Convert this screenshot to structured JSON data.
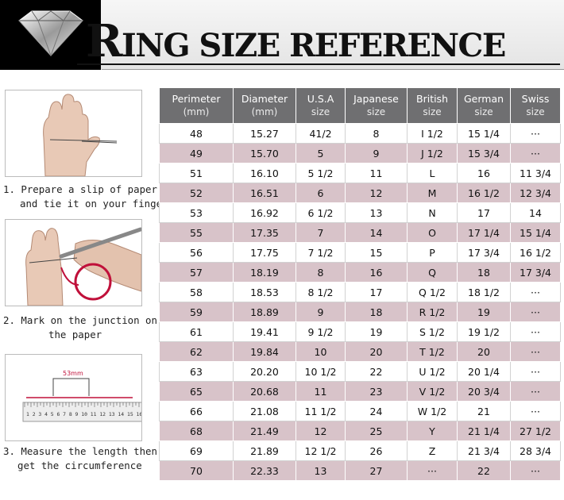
{
  "header": {
    "title_first": "R",
    "title_rest": "ING SIZE REFERENCE"
  },
  "steps": [
    {
      "line1": "1. Prepare a slip of paper",
      "line2": "and tie it on your finger"
    },
    {
      "line1": "2. Mark on the junction on",
      "line2": "the paper"
    },
    {
      "line1": "3. Measure the length then",
      "line2": "get the circumference",
      "ruler_label": "53mm",
      "ruler_numbers": "1 2 3 4 5 6 7 8 9 10 11 12 13 14 15 16"
    }
  ],
  "table": {
    "columns": [
      {
        "name": "Perimeter",
        "unit": "(mm)"
      },
      {
        "name": "Diameter",
        "unit": "(mm)"
      },
      {
        "name": "U.S.A",
        "unit": "size"
      },
      {
        "name": "Japanese",
        "unit": "size"
      },
      {
        "name": "British",
        "unit": "size"
      },
      {
        "name": "German",
        "unit": "size"
      },
      {
        "name": "Swiss",
        "unit": "size"
      }
    ],
    "rows": [
      [
        "48",
        "15.27",
        "41/2",
        "8",
        "I 1/2",
        "15 1/4",
        "···"
      ],
      [
        "49",
        "15.70",
        "5",
        "9",
        "J 1/2",
        "15 3/4",
        "···"
      ],
      [
        "51",
        "16.10",
        "5 1/2",
        "11",
        "L",
        "16",
        "11 3/4"
      ],
      [
        "52",
        "16.51",
        "6",
        "12",
        "M",
        "16 1/2",
        "12 3/4"
      ],
      [
        "53",
        "16.92",
        "6 1/2",
        "13",
        "N",
        "17",
        "14"
      ],
      [
        "55",
        "17.35",
        "7",
        "14",
        "O",
        "17 1/4",
        "15 1/4"
      ],
      [
        "56",
        "17.75",
        "7 1/2",
        "15",
        "P",
        "17 3/4",
        "16 1/2"
      ],
      [
        "57",
        "18.19",
        "8",
        "16",
        "Q",
        "18",
        "17 3/4"
      ],
      [
        "58",
        "18.53",
        "8 1/2",
        "17",
        "Q  1/2",
        "18 1/2",
        "···"
      ],
      [
        "59",
        "18.89",
        "9",
        "18",
        "R 1/2",
        "19",
        "···"
      ],
      [
        "61",
        "19.41",
        "9 1/2",
        "19",
        "S 1/2",
        "19 1/2",
        "···"
      ],
      [
        "62",
        "19.84",
        "10",
        "20",
        "T 1/2",
        "20",
        "···"
      ],
      [
        "63",
        "20.20",
        "10 1/2",
        "22",
        "U 1/2",
        "20 1/4",
        "···"
      ],
      [
        "65",
        "20.68",
        "11",
        "23",
        "V 1/2",
        "20 3/4",
        "···"
      ],
      [
        "66",
        "21.08",
        "11 1/2",
        "24",
        "W 1/2",
        "21",
        "···"
      ],
      [
        "68",
        "21.49",
        "12",
        "25",
        "Y",
        "21 1/4",
        "27 1/2"
      ],
      [
        "69",
        "21.89",
        "12 1/2",
        "26",
        "Z",
        "21 3/4",
        "28 3/4"
      ],
      [
        "70",
        "22.33",
        "13",
        "27",
        "···",
        "22",
        "···"
      ]
    ]
  }
}
